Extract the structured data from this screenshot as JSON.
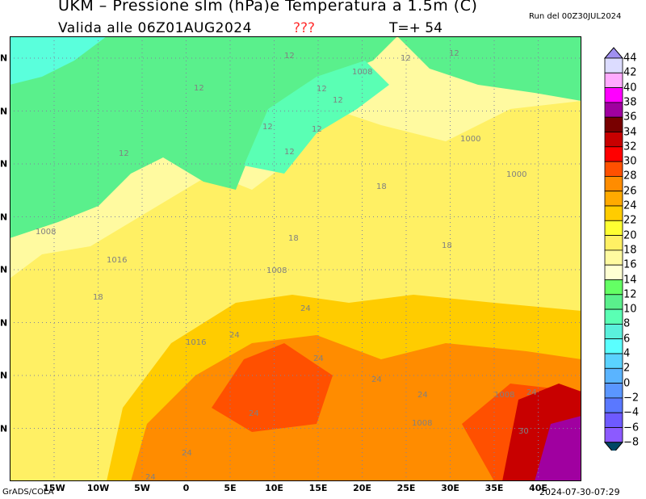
{
  "header": {
    "title": "UKM – Pressione slm (hPa)e Temperatura a 1.5m (C)",
    "valid": "Valida alle 06Z01AUG2024",
    "unknown": "???",
    "timestep": "T=+ 54",
    "run": "Run del 00Z30JUL2024"
  },
  "footer": {
    "credit": "GrADS/COLA",
    "timestamp": "2024-07-30-07:29"
  },
  "axes": {
    "lon_labels": [
      "15W",
      "10W",
      "5W",
      "0",
      "5E",
      "10E",
      "15E",
      "20E",
      "25E",
      "30E",
      "35E",
      "40E"
    ],
    "lat_labels": [
      "N",
      "N",
      "N",
      "N",
      "N",
      "N",
      "N",
      "N"
    ]
  },
  "colorbar": {
    "labels": [
      "44",
      "42",
      "40",
      "38",
      "36",
      "34",
      "32",
      "30",
      "28",
      "26",
      "24",
      "22",
      "20",
      "18",
      "16",
      "14",
      "12",
      "10",
      "8",
      "6",
      "4",
      "2",
      "0",
      "−2",
      "−4",
      "−6",
      "−8"
    ],
    "colors": [
      "#dcdcff",
      "#ffaaff",
      "#ff00ff",
      "#a000a0",
      "#780000",
      "#c80000",
      "#ff0000",
      "#ff5000",
      "#ff8c00",
      "#ffaa00",
      "#ffcc00",
      "#ffff32",
      "#fff064",
      "#fffaa0",
      "#ffffd2",
      "#64ff64",
      "#5af08c",
      "#5affb4",
      "#5af0dc",
      "#5affff",
      "#5ad2ff",
      "#5ab4ff",
      "#5a96ff",
      "#5a78ff",
      "#6e5aff",
      "#8c5aff"
    ],
    "top_arrow": "#a090f0",
    "bottom_arrow": "#004664"
  },
  "contour_labels": [
    "12",
    "12",
    "12",
    "12",
    "12",
    "12",
    "12",
    "12",
    "12",
    "12",
    "1008",
    "1000",
    "1000",
    "18",
    "18",
    "18",
    "1008",
    "1016",
    "1008",
    "18",
    "24",
    "24",
    "1016",
    "24",
    "24",
    "24",
    "1008",
    "1008",
    "24",
    "24",
    "30",
    "24",
    "24"
  ]
}
